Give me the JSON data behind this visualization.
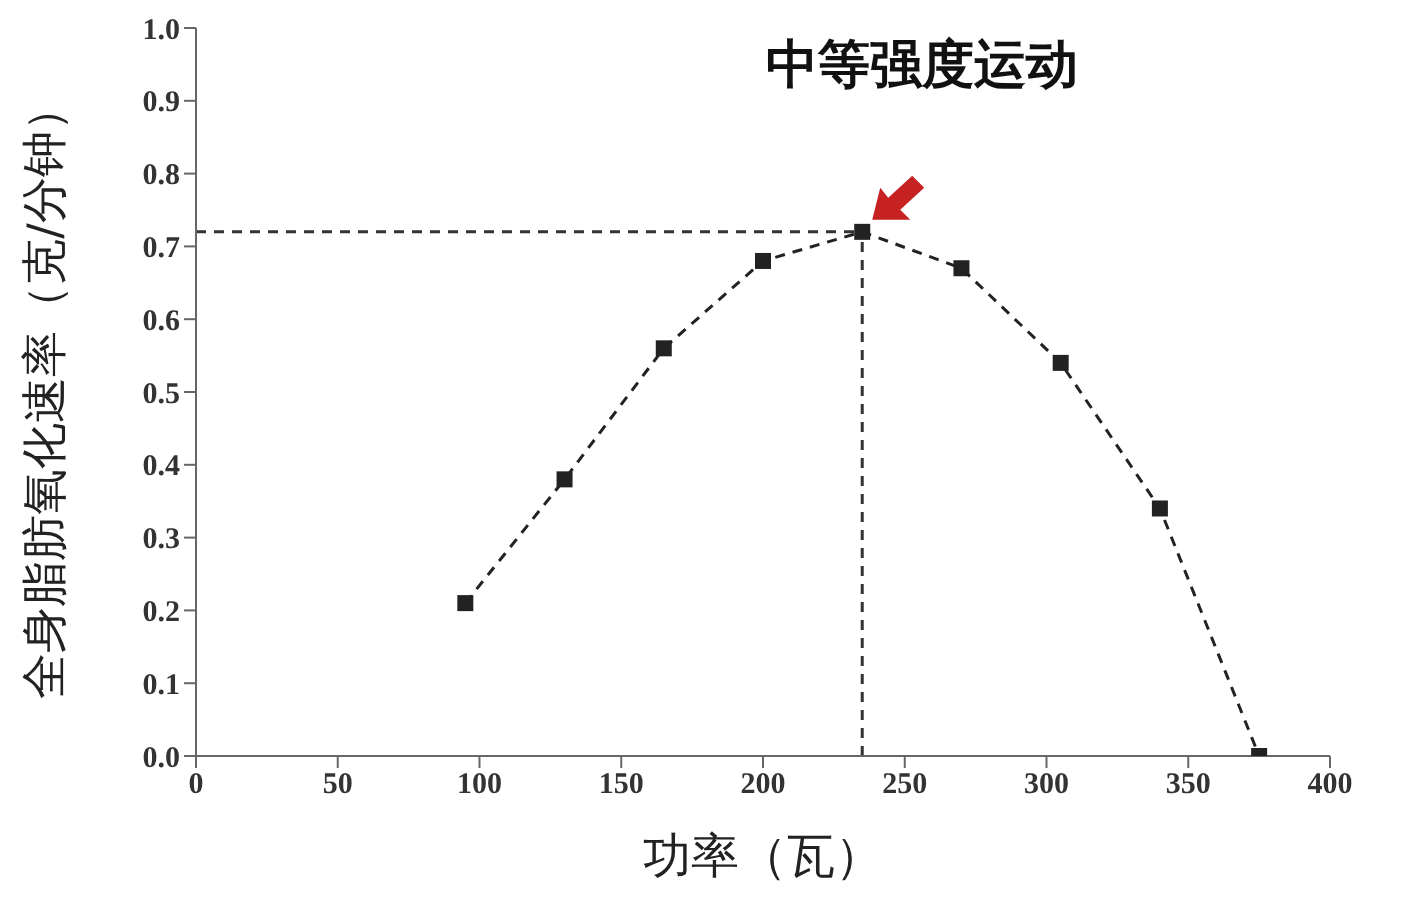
{
  "chart_data": {
    "type": "line",
    "xlabel": "功率（瓦）",
    "ylabel": "全身脂肪氧化速率（克/分钟）",
    "x": [
      95,
      130,
      165,
      200,
      235,
      270,
      305,
      340,
      375
    ],
    "series": [
      {
        "color": "#222222",
        "values": [
          0.21,
          0.38,
          0.56,
          0.68,
          0.72,
          0.67,
          0.54,
          0.34,
          0.0
        ]
      }
    ],
    "marker": "square",
    "line_style": "dashed",
    "grid": false,
    "legend": false,
    "xlim": [
      0,
      400
    ],
    "xticks": [
      0,
      50,
      100,
      150,
      200,
      250,
      300,
      350,
      400
    ],
    "ylim": [
      0,
      1
    ],
    "yticks": [
      {
        "value": 0,
        "label": "0.0"
      },
      0.1,
      0.2,
      0.3,
      0.4,
      0.5,
      0.6,
      0.7,
      0.8,
      0.9,
      {
        "value": 1,
        "label": "1.0"
      }
    ],
    "ref_lines": [
      {
        "axis": "y",
        "value": 0.72,
        "color": "#333333",
        "line_style": "dashed"
      },
      {
        "axis": "x",
        "value": 235,
        "color": "#333333",
        "line_style": "dashed"
      }
    ],
    "annotations": [
      {
        "text": "中等强度运动",
        "x": 235,
        "y": 0.72
      }
    ]
  }
}
